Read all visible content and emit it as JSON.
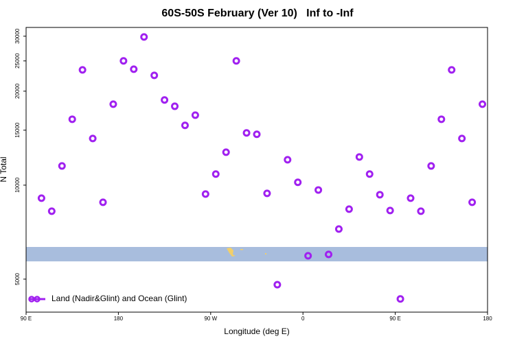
{
  "chart_data": {
    "type": "scatter",
    "title": "60S-50S February (Ver 10)   Inf to -Inf",
    "x_label": "Longitude (deg E)",
    "y_label": "N Total",
    "xlim": [
      90,
      540
    ],
    "xticks": [
      {
        "value": 90,
        "label": "90 E"
      },
      {
        "value": 180,
        "label": "180"
      },
      {
        "value": 270,
        "label": "90 W"
      },
      {
        "value": 360,
        "label": "0"
      },
      {
        "value": 450,
        "label": "90 E"
      },
      {
        "value": 540,
        "label": "180"
      }
    ],
    "ylim": [
      3920,
      32000
    ],
    "y_log": true,
    "yticks": [
      5000,
      10000,
      15000,
      20000,
      25000,
      30000
    ],
    "legend_position": "bottom-left",
    "series": [
      {
        "name": "Land (Nadir&Glint) and Ocean (Glint)",
        "color": "#a020f0",
        "x": [
          105,
          115,
          125,
          135,
          145,
          155,
          165,
          175,
          185,
          195,
          205,
          215,
          225,
          235,
          245,
          255,
          265,
          275,
          285,
          295,
          305,
          315,
          325,
          335,
          345,
          355,
          365,
          375,
          385,
          395,
          405,
          415,
          425,
          435,
          445,
          455,
          465,
          475,
          485,
          495,
          505,
          515,
          525,
          535
        ],
        "values": [
          9085,
          8254,
          11520,
          16260,
          23400,
          14110,
          8815,
          18170,
          25000,
          23520,
          29830,
          22470,
          18740,
          17890,
          15540,
          16760,
          9365,
          10850,
          12750,
          25000,
          14700,
          14550,
          9410,
          4800,
          12060,
          10210,
          5940,
          9650,
          6000,
          7235,
          8380,
          12310,
          10850,
          9320,
          8295,
          4320,
          9085,
          8254,
          11520,
          16260,
          23400,
          14110,
          8815,
          18170
        ]
      }
    ]
  }
}
